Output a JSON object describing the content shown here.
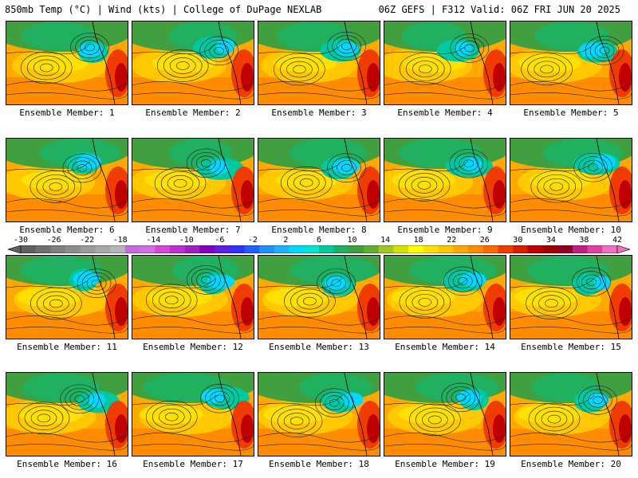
{
  "header": {
    "left": "850mb Temp (°C) | Wind (kts) | College of DuPage NEXLAB",
    "right": "06Z GEFS | F312 Valid: 06Z FRI JUN 20 2025"
  },
  "colorbar": {
    "labels": [
      "-30",
      "-26",
      "-22",
      "-18",
      "-14",
      "-10",
      "-6",
      "-2",
      "2",
      "6",
      "10",
      "14",
      "18",
      "22",
      "26",
      "30",
      "34",
      "38",
      "42"
    ],
    "min": -30,
    "max": 42,
    "step": 2,
    "colors": [
      "#606060",
      "#707070",
      "#808080",
      "#8c8c8c",
      "#9a9a9a",
      "#a8a8a8",
      "#b6b6b6",
      "#c46adc",
      "#d070e0",
      "#d846d8",
      "#c030d0",
      "#a020c0",
      "#8000c0",
      "#6020e0",
      "#3030ff",
      "#2060ff",
      "#1e90ff",
      "#20b0ff",
      "#00d8ff",
      "#00e6d0",
      "#00c8a0",
      "#20b060",
      "#40a040",
      "#60b030",
      "#a0c820",
      "#d8e000",
      "#ffff00",
      "#ffe000",
      "#ffc800",
      "#ffa800",
      "#ff8c00",
      "#ff6a00",
      "#f03c00",
      "#d81e00",
      "#c00000",
      "#a00000",
      "#900020",
      "#c02080",
      "#e040a0",
      "#f070c0"
    ]
  },
  "members": [
    {
      "label": "Ensemble Member: 1"
    },
    {
      "label": "Ensemble Member: 2"
    },
    {
      "label": "Ensemble Member: 3"
    },
    {
      "label": "Ensemble Member: 4"
    },
    {
      "label": "Ensemble Member: 5"
    },
    {
      "label": "Ensemble Member: 6"
    },
    {
      "label": "Ensemble Member: 7"
    },
    {
      "label": "Ensemble Member: 8"
    },
    {
      "label": "Ensemble Member: 9"
    },
    {
      "label": "Ensemble Member: 10"
    },
    {
      "label": "Ensemble Member: 11"
    },
    {
      "label": "Ensemble Member: 12"
    },
    {
      "label": "Ensemble Member: 13"
    },
    {
      "label": "Ensemble Member: 14"
    },
    {
      "label": "Ensemble Member: 15"
    },
    {
      "label": "Ensemble Member: 16"
    },
    {
      "label": "Ensemble Member: 17"
    },
    {
      "label": "Ensemble Member: 18"
    },
    {
      "label": "Ensemble Member: 19"
    },
    {
      "label": "Ensemble Member: 20"
    }
  ]
}
